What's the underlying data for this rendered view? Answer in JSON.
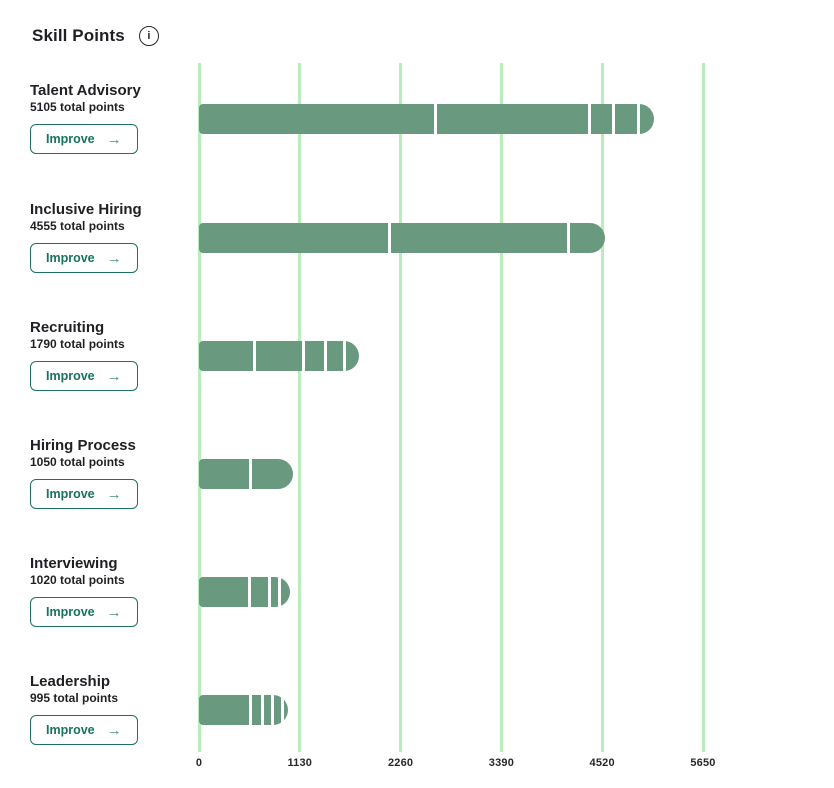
{
  "page": {
    "title": "Skill Points"
  },
  "icons": {
    "info": "i",
    "arrow_right": "→"
  },
  "colors": {
    "bar_fill": "#699a80",
    "gridline": "#b9edbc",
    "button_border": "#1c7360",
    "button_text": "#17735e",
    "arrow": "#4f9276",
    "text_dark": "#1f2023",
    "background": "#ffffff"
  },
  "chart_data": {
    "type": "bar",
    "orientation": "horizontal",
    "title": "Skill Points",
    "categories": [
      "Talent Advisory",
      "Inclusive Hiring",
      "Recruiting",
      "Hiring Process",
      "Interviewing",
      "Leadership"
    ],
    "totals": [
      5105,
      4555,
      1790,
      1050,
      1020,
      995
    ],
    "segments": [
      [
        2640,
        1725,
        270,
        280,
        190
      ],
      [
        2115,
        2005,
        435
      ],
      [
        610,
        540,
        250,
        215,
        175
      ],
      [
        560,
        490
      ],
      [
        545,
        230,
        115,
        130
      ],
      [
        565,
        125,
        120,
        110,
        75
      ]
    ],
    "xlabel": "",
    "ylabel": "",
    "xlim": [
      0,
      5650
    ],
    "x_ticks": [
      0,
      1130,
      2260,
      3390,
      4520,
      5650
    ],
    "grid": true,
    "legend": false
  },
  "rows": [
    {
      "name": "Talent Advisory",
      "subtitle": "5105 total points",
      "button_label": "Improve"
    },
    {
      "name": "Inclusive Hiring",
      "subtitle": "4555 total points",
      "button_label": "Improve"
    },
    {
      "name": "Recruiting",
      "subtitle": "1790 total points",
      "button_label": "Improve"
    },
    {
      "name": "Hiring Process",
      "subtitle": "1050 total points",
      "button_label": "Improve"
    },
    {
      "name": "Interviewing",
      "subtitle": "1020 total points",
      "button_label": "Improve"
    },
    {
      "name": "Leadership",
      "subtitle": "995 total points",
      "button_label": "Improve"
    }
  ]
}
